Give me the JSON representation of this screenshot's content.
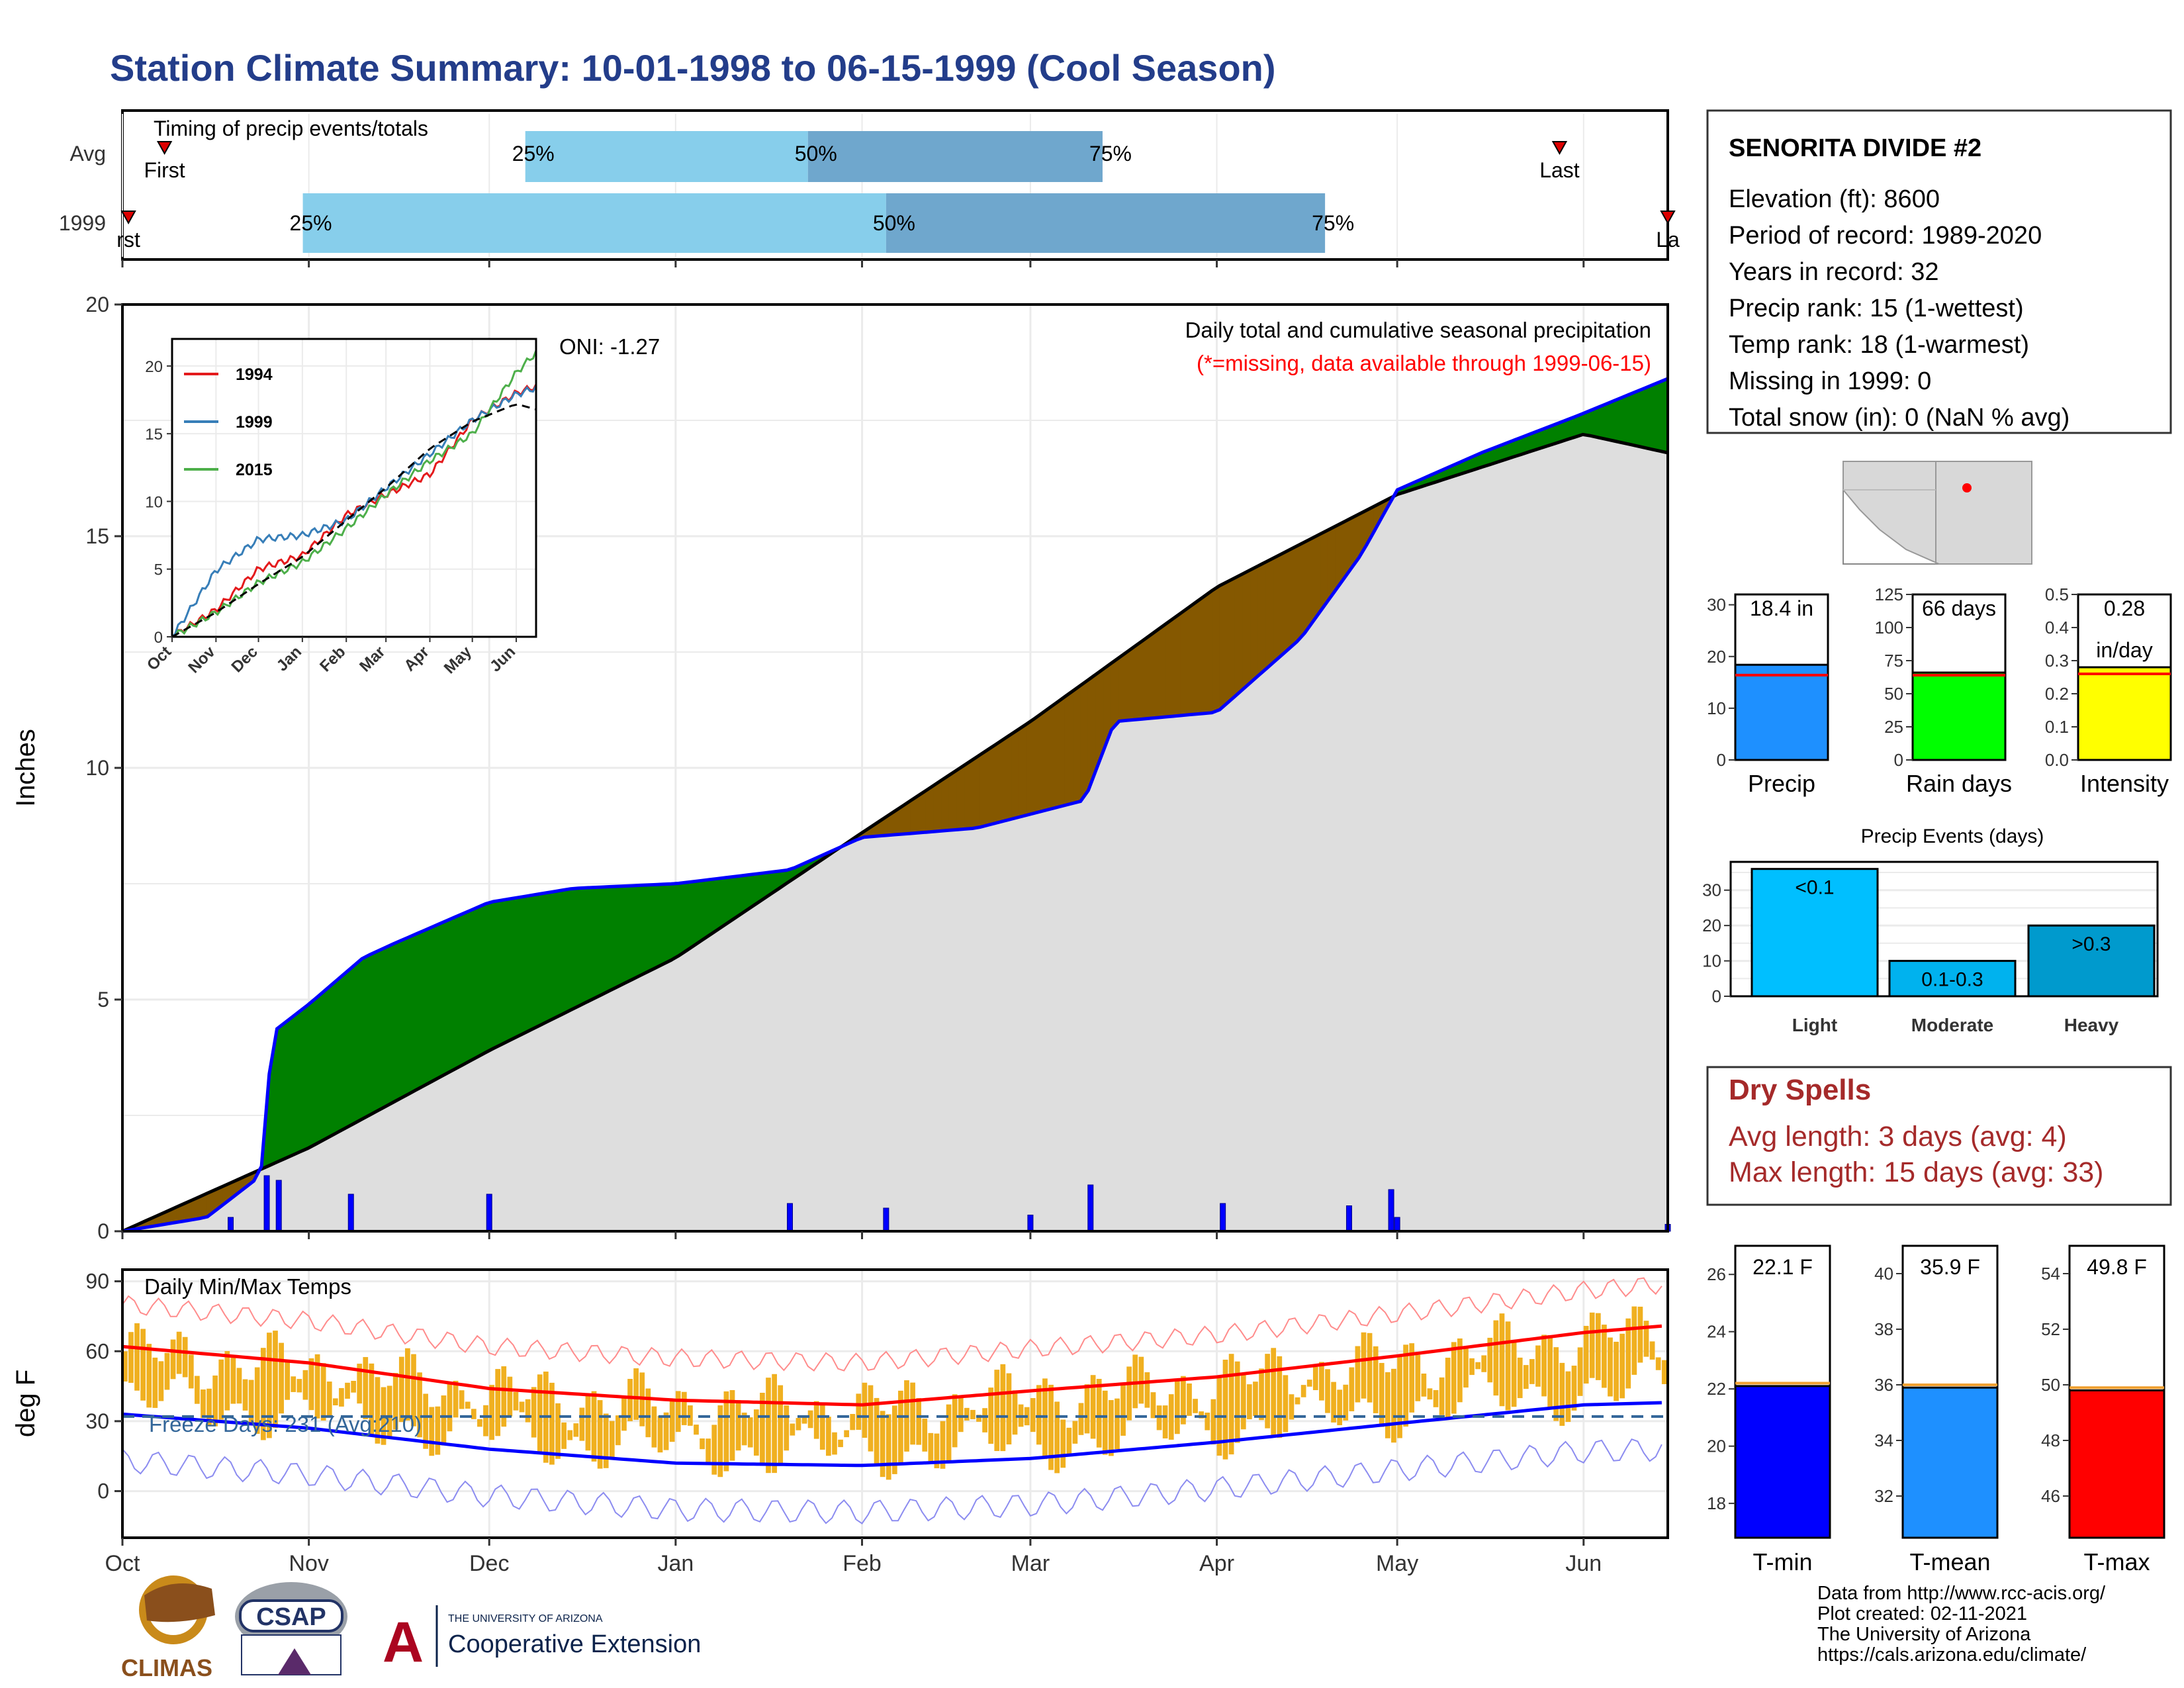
{
  "title": "Station Climate Summary: 10-01-1998 to 06-15-1999 (Cool Season)",
  "colors": {
    "title": "#233d8a",
    "wet_fill": "#008000",
    "dry_fill": "#855800",
    "obs_line": "#0000ff",
    "avg_fill": "#dedede",
    "bar_light": "#87ceeb",
    "bar_dark": "#6fa7cd",
    "temp_bar": "#f0b020",
    "dry_spell_text": "#a52a2a"
  },
  "timing": {
    "label": "Timing of precip events/totals",
    "rows": [
      {
        "name": "Avg",
        "first_label": "First",
        "last_label": "Last",
        "first_date": "1998-10-08",
        "last_date": "1999-05-28",
        "p25": "1998-12-07",
        "p50": "1999-01-23",
        "p75": "1999-03-13",
        "p25_label": "25%",
        "p50_label": "50%",
        "p75_label": "75%"
      },
      {
        "name": "1999",
        "first_label": "rst",
        "last_label": "La",
        "first_date": "1998-10-02",
        "last_date": "1999-06-15",
        "p25": "1998-10-31",
        "p50": "1999-02-05",
        "p75": "1999-04-19",
        "p25_label": "25%",
        "p50_label": "50%",
        "p75_label": "75%"
      }
    ]
  },
  "main_panel": {
    "annotation": "Daily total and cumulative seasonal precipitation",
    "missing_note": "(*=missing, data available through 1999-06-15)",
    "oni": "ONI: -1.27",
    "ylabel": "Inches",
    "yticks": [
      "0",
      "5",
      "10",
      "15",
      "20"
    ]
  },
  "months": [
    "Oct",
    "Nov",
    "Dec",
    "Jan",
    "Feb",
    "Mar",
    "Apr",
    "May",
    "Jun"
  ],
  "inset": {
    "months": [
      "Oct",
      "Nov",
      "Dec",
      "Jan",
      "Feb",
      "Mar",
      "Apr",
      "May",
      "Jun"
    ],
    "yticks": [
      "0",
      "5",
      "10",
      "15",
      "20"
    ],
    "legend": [
      {
        "name": "1994",
        "color": "#e41a1c"
      },
      {
        "name": "1999",
        "color": "#377eb8"
      },
      {
        "name": "2015",
        "color": "#4daf4a"
      }
    ]
  },
  "temp_panel": {
    "label": "Daily Min/Max Temps",
    "freeze": "Freeze Days: 231 (Avg:210)",
    "ylabel": "deg F",
    "yticks": [
      "0",
      "30",
      "60",
      "90"
    ]
  },
  "station": {
    "name": "SENORITA DIVIDE #2",
    "lines": [
      "Elevation (ft): 8600",
      "Period of record: 1989-2020",
      "Years in record: 32",
      "Precip rank: 15 (1-wettest)",
      "Temp rank: 18 (1-warmest)",
      "Missing in 1999: 0",
      "Total snow (in): 0 (NaN % avg)"
    ]
  },
  "summary_bars": [
    {
      "label": "Precip",
      "value": 18.4,
      "avg": 16.4,
      "ymax": 32,
      "ticks": [
        "0",
        "10",
        "20",
        "30"
      ],
      "text1": "18.4 in",
      "text2": "",
      "color": "#1e90ff"
    },
    {
      "label": "Rain days",
      "value": 66,
      "avg": 64,
      "ymax": 125,
      "ticks": [
        "0",
        "25",
        "50",
        "75",
        "100",
        "125"
      ],
      "text1": "66 days",
      "text2": "",
      "color": "#00ff00"
    },
    {
      "label": "Intensity",
      "value": 0.28,
      "avg": 0.26,
      "ymax": 0.5,
      "ticks": [
        "0.0",
        "0.1",
        "0.2",
        "0.3",
        "0.4",
        "0.5"
      ],
      "text1": "0.28",
      "text2": "in/day",
      "color": "#ffff00"
    }
  ],
  "precip_events": {
    "title": "Precip Events (days)",
    "yticks": [
      "0",
      "10",
      "20",
      "30"
    ],
    "bars": [
      {
        "name": "Light",
        "value": 36,
        "label": "<0.1",
        "color": "#00bfff"
      },
      {
        "name": "Moderate",
        "value": 10,
        "label": "0.1-0.3",
        "color": "#00b2ee"
      },
      {
        "name": "Heavy",
        "value": 20,
        "label": ">0.3",
        "color": "#009acd"
      }
    ]
  },
  "dry_spells": {
    "title": "Dry Spells",
    "avg": "Avg length: 3 days (avg: 4)",
    "max": "Max length: 15 days (avg: 33)"
  },
  "temp_bars": [
    {
      "label": "T-min",
      "value": 22.1,
      "avg": 22.2,
      "ymin": 16.8,
      "ymax": 27,
      "ticks": [
        "18",
        "20",
        "22",
        "24",
        "26"
      ],
      "text": "22.1 F",
      "color": "#0000ff"
    },
    {
      "label": "T-mean",
      "value": 35.9,
      "avg": 36.0,
      "ymin": 30.5,
      "ymax": 41,
      "ticks": [
        "32",
        "34",
        "36",
        "38",
        "40"
      ],
      "text": "35.9 F",
      "color": "#1e90ff"
    },
    {
      "label": "T-max",
      "value": 49.8,
      "avg": 49.9,
      "ymin": 44.5,
      "ymax": 55,
      "ticks": [
        "46",
        "48",
        "50",
        "52",
        "54"
      ],
      "text": "49.8 F",
      "color": "#ff0000"
    }
  ],
  "footer": {
    "lines": [
      "Data from http://www.rcc-acis.org/",
      "Plot created: 02-11-2021",
      "The University of Arizona",
      "https://cals.arizona.edu/climate/"
    ]
  },
  "logos": {
    "climas": "CLIMAS",
    "csap": "CSAP",
    "ua_top": "THE UNIVERSITY OF ARIZONA",
    "ua_bottom": "Cooperative Extension"
  },
  "chart_data": {
    "type": "line",
    "title": "Station Climate Summary: 10-01-1998 to 06-15-1999 (Cool Season)",
    "ylabel": "Inches",
    "ylim": [
      0,
      20
    ],
    "series": [
      {
        "name": "1999",
        "x": [
          "1998-10-01",
          "1998-10-15",
          "1998-10-24",
          "1998-10-26",
          "1998-11-01",
          "1998-11-10",
          "1998-11-15",
          "1998-12-01",
          "1998-12-15",
          "1999-01-01",
          "1999-01-20",
          "1999-02-01",
          "1999-02-20",
          "1999-03-10",
          "1999-03-15",
          "1999-04-01",
          "1999-04-15",
          "1999-04-25",
          "1999-05-01",
          "1999-05-15",
          "1999-05-31",
          "1999-06-15"
        ],
        "values": [
          0.0,
          0.3,
          1.2,
          4.3,
          4.9,
          5.9,
          6.2,
          7.1,
          7.4,
          7.5,
          7.8,
          8.5,
          8.7,
          9.3,
          11.0,
          11.2,
          12.8,
          14.6,
          16.0,
          16.8,
          17.6,
          18.4
        ]
      },
      {
        "name": "Average",
        "x": [
          "1998-10-01",
          "1998-11-01",
          "1998-12-01",
          "1999-01-01",
          "1999-02-01",
          "1999-03-01",
          "1999-04-01",
          "1999-05-01",
          "1999-06-01",
          "1999-06-15"
        ],
        "values": [
          0.0,
          1.8,
          3.9,
          5.9,
          8.6,
          11.0,
          13.9,
          15.9,
          17.2,
          16.8
        ]
      },
      {
        "name": "Daily precip",
        "x": [
          "1998-10-19",
          "1998-10-25",
          "1998-10-27",
          "1998-11-08",
          "1998-12-01",
          "1999-01-20",
          "1999-02-05",
          "1999-03-01",
          "1999-03-11",
          "1999-04-02",
          "1999-04-23",
          "1999-04-30",
          "1999-05-01",
          "1999-06-15"
        ],
        "values": [
          0.3,
          1.2,
          1.1,
          0.8,
          0.8,
          0.6,
          0.5,
          0.35,
          1.0,
          0.6,
          0.55,
          0.9,
          0.3,
          0.15
        ]
      }
    ],
    "inset_series": [
      {
        "name": "1994",
        "x": [
          "1998-10-01",
          "1998-11-01",
          "1998-12-01",
          "1999-01-01",
          "1999-02-01",
          "1999-03-01",
          "1999-04-01",
          "1999-05-01",
          "1999-06-01",
          "1999-06-15"
        ],
        "values": [
          0.0,
          2.0,
          5.0,
          6.0,
          9.0,
          10.5,
          12.0,
          16.0,
          18.0,
          18.5
        ]
      },
      {
        "name": "1999",
        "x": [
          "1998-10-01",
          "1998-11-01",
          "1998-12-01",
          "1999-01-01",
          "1999-02-01",
          "1999-03-01",
          "1999-04-01",
          "1999-05-01",
          "1999-06-01",
          "1999-06-15"
        ],
        "values": [
          0.0,
          4.9,
          7.2,
          7.5,
          8.6,
          11.0,
          13.5,
          16.0,
          17.9,
          18.4
        ]
      },
      {
        "name": "2015",
        "x": [
          "1998-10-01",
          "1998-11-01",
          "1998-12-01",
          "1999-01-01",
          "1999-02-01",
          "1999-03-01",
          "1999-04-01",
          "1999-05-01",
          "1999-06-01",
          "1999-06-15"
        ],
        "values": [
          0.0,
          1.8,
          4.0,
          5.5,
          8.0,
          10.5,
          13.0,
          15.0,
          19.5,
          21.0
        ]
      }
    ],
    "temperature": {
      "ylabel": "deg F",
      "ylim": [
        -20,
        95
      ],
      "x": [
        "1998-10-01",
        "1998-11-01",
        "1998-12-01",
        "1999-01-01",
        "1999-02-01",
        "1999-03-01",
        "1999-04-01",
        "1999-05-01",
        "1999-06-01",
        "1999-06-15"
      ],
      "avg_max": [
        62,
        55,
        44,
        39,
        37,
        43,
        49,
        58,
        68,
        71
      ],
      "avg_min": [
        33,
        27,
        18,
        12,
        11,
        14,
        21,
        29,
        37,
        38
      ],
      "freeze_line": 32
    }
  }
}
